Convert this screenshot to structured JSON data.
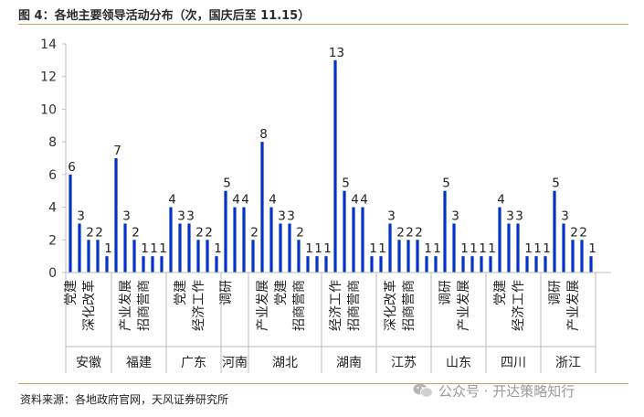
{
  "header": {
    "title": "图 4：各地主要领导活动分布（次，国庆后至 11.15）"
  },
  "footer": {
    "source": "资料来源：各地政府官网，天风证券研究所",
    "watermark": "公众号 · 开达策略知行"
  },
  "colors": {
    "bar": "#0033cc",
    "rule": "#c8a55a",
    "axis": "#bfbfbf"
  },
  "chart_data": {
    "type": "bar",
    "ylim": [
      0,
      14
    ],
    "yticks": [
      0,
      2,
      4,
      6,
      8,
      10,
      12,
      14
    ],
    "categories": [
      "党建",
      "",
      "深化改革",
      "",
      "",
      "产业发展",
      "",
      "招商营商",
      "",
      "",
      "党建",
      "",
      "经济工作",
      "",
      "",
      "调研",
      "",
      "",
      "产业发展",
      "",
      "党建",
      "",
      "招商营商",
      "",
      "",
      "经济工作",
      "",
      "招商营商",
      "",
      "深化改革",
      "",
      "招商营商",
      "",
      "调研",
      "",
      "产业发展",
      "",
      "",
      "党建",
      "",
      "经济工作",
      "",
      "",
      "调研",
      "",
      "产业发展",
      ""
    ],
    "groups": [
      {
        "name": "安徽",
        "labels": [
          "党建",
          "",
          "深化改革",
          "",
          ""
        ],
        "values": [
          6,
          3,
          2,
          2,
          1
        ]
      },
      {
        "name": "福建",
        "labels": [
          "",
          "产业发展",
          "",
          "招商营商",
          "",
          ""
        ],
        "values": [
          7,
          3,
          2,
          1,
          1,
          1
        ]
      },
      {
        "name": "广东",
        "labels": [
          "",
          "党建",
          "",
          "经济工作",
          "",
          ""
        ],
        "values": [
          4,
          3,
          3,
          2,
          2,
          1
        ]
      },
      {
        "name": "河南",
        "labels": [
          "调研",
          "",
          ""
        ],
        "values": [
          5,
          4,
          4
        ]
      },
      {
        "name": "湖北",
        "labels": [
          "",
          "产业发展",
          "",
          "党建",
          "",
          "招商营商",
          "",
          ""
        ],
        "values": [
          2,
          8,
          4,
          3,
          3,
          2,
          1,
          1
        ]
      },
      {
        "name": "湖南",
        "labels": [
          "",
          "经济工作",
          "",
          "招商营商",
          "",
          ""
        ],
        "values": [
          1,
          13,
          5,
          4,
          4,
          1
        ]
      },
      {
        "name": "江苏",
        "labels": [
          "",
          "深化改革",
          "",
          "招商营商",
          "",
          ""
        ],
        "values": [
          1,
          3,
          2,
          2,
          2,
          1
        ]
      },
      {
        "name": "山东",
        "labels": [
          "",
          "调研",
          "",
          "产业发展",
          "",
          ""
        ],
        "values": [
          1,
          5,
          3,
          1,
          1,
          1
        ]
      },
      {
        "name": "四川",
        "labels": [
          "",
          "党建",
          "",
          "经济工作",
          "",
          ""
        ],
        "values": [
          1,
          4,
          3,
          3,
          1,
          1
        ]
      },
      {
        "name": "浙江",
        "labels": [
          "",
          "调研",
          "",
          "产业发展",
          "",
          ""
        ],
        "values": [
          1,
          5,
          3,
          2,
          2,
          1
        ]
      }
    ],
    "grid": false,
    "legend": "none"
  }
}
